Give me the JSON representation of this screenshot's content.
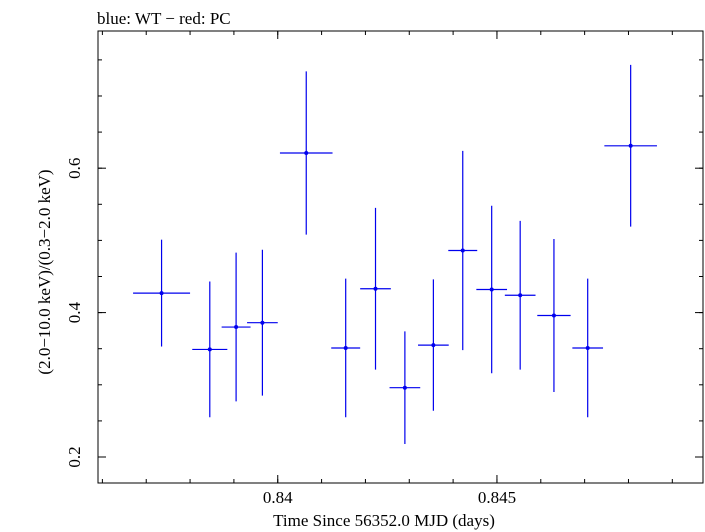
{
  "chart_data": {
    "type": "scatter",
    "title": "blue: WT − red: PC",
    "xlabel": "Time Since 56352.0 MJD (days)",
    "ylabel": "(2.0−10.0 keV)/(0.3−2.0 keV)",
    "xlim": [
      0.8359,
      0.8497
    ],
    "ylim": [
      0.164,
      0.79
    ],
    "x_ticks": [
      {
        "value": 0.84,
        "label": "0.84"
      },
      {
        "value": 0.845,
        "label": "0.845"
      }
    ],
    "y_ticks": [
      {
        "value": 0.2,
        "label": "0.2"
      },
      {
        "value": 0.4,
        "label": "0.4"
      },
      {
        "value": 0.6,
        "label": "0.6"
      }
    ],
    "x_minor_step": 0.001,
    "y_minor_step": 0.05,
    "grid": false,
    "series": [
      {
        "name": "WT",
        "color": "#0000ee",
        "points": [
          {
            "x": 0.83735,
            "xerr": 0.00065,
            "y": 0.427,
            "yerr_low": 0.074,
            "yerr_high": 0.074
          },
          {
            "x": 0.83845,
            "xerr": 0.0004,
            "y": 0.349,
            "yerr_low": 0.094,
            "yerr_high": 0.094
          },
          {
            "x": 0.83905,
            "xerr": 0.00033,
            "y": 0.38,
            "yerr_low": 0.103,
            "yerr_high": 0.103
          },
          {
            "x": 0.83965,
            "xerr": 0.00035,
            "y": 0.386,
            "yerr_low": 0.101,
            "yerr_high": 0.101
          },
          {
            "x": 0.84065,
            "xerr": 0.0006,
            "y": 0.621,
            "yerr_low": 0.113,
            "yerr_high": 0.113
          },
          {
            "x": 0.84155,
            "xerr": 0.00033,
            "y": 0.351,
            "yerr_low": 0.096,
            "yerr_high": 0.096
          },
          {
            "x": 0.84223,
            "xerr": 0.00035,
            "y": 0.433,
            "yerr_low": 0.112,
            "yerr_high": 0.112
          },
          {
            "x": 0.8429,
            "xerr": 0.00035,
            "y": 0.296,
            "yerr_low": 0.078,
            "yerr_high": 0.078
          },
          {
            "x": 0.84355,
            "xerr": 0.00035,
            "y": 0.355,
            "yerr_low": 0.091,
            "yerr_high": 0.091
          },
          {
            "x": 0.84422,
            "xerr": 0.00033,
            "y": 0.486,
            "yerr_low": 0.138,
            "yerr_high": 0.138
          },
          {
            "x": 0.84488,
            "xerr": 0.00035,
            "y": 0.432,
            "yerr_low": 0.116,
            "yerr_high": 0.116
          },
          {
            "x": 0.84553,
            "xerr": 0.00035,
            "y": 0.424,
            "yerr_low": 0.103,
            "yerr_high": 0.103
          },
          {
            "x": 0.8463,
            "xerr": 0.00038,
            "y": 0.396,
            "yerr_low": 0.106,
            "yerr_high": 0.106
          },
          {
            "x": 0.84707,
            "xerr": 0.00035,
            "y": 0.351,
            "yerr_low": 0.096,
            "yerr_high": 0.096
          },
          {
            "x": 0.84805,
            "xerr": 0.0006,
            "y": 0.631,
            "yerr_low": 0.112,
            "yerr_high": 0.112
          }
        ]
      }
    ]
  }
}
